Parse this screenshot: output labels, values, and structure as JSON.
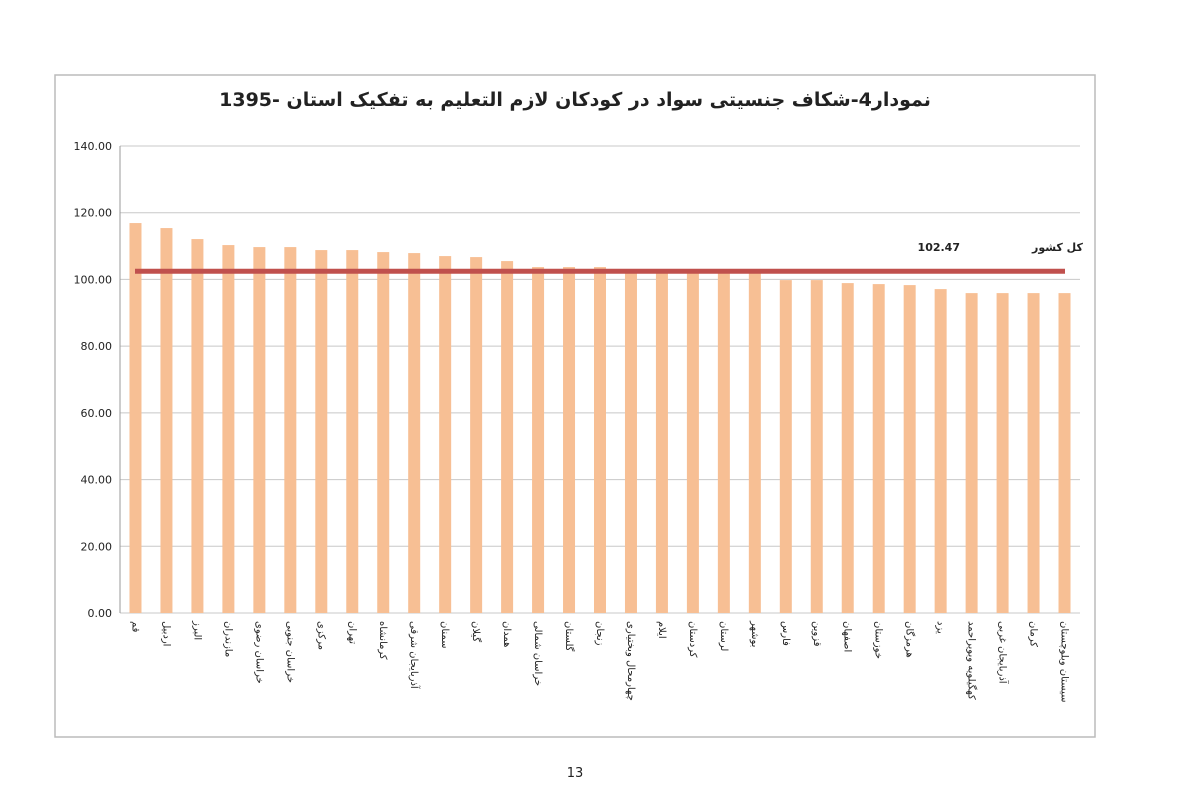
{
  "chart_data": {
    "type": "bar",
    "title": "نمودار4-شکاف جنسیتی سواد در کودکان لازم التعلیم به تفکیک استان -1395",
    "categories": [
      "قم",
      "اردبیل",
      "البرز",
      "مازندران",
      "خراسان رضوی",
      "خراسان جنوبی",
      "مرکزی",
      "تهران",
      "کرمانشاه",
      "آذربایجان شرقی",
      "سمنان",
      "گیلان",
      "همدان",
      "خراسان شمالی",
      "گلستان",
      "زنجان",
      "چهارمحال وبختیاری",
      "ایلام",
      "کردستان",
      "لرستان",
      "بوشهر",
      "فارس",
      "قزوین",
      "اصفهان",
      "خوزستان",
      "هرمزگان",
      "یزد",
      "کهگیلویه وبویراحمد",
      "آذربایجان غربی",
      "کرمان",
      "سیستان وبلوچستان"
    ],
    "values": [
      116.9,
      115.4,
      112.1,
      110.3,
      109.7,
      109.7,
      108.8,
      108.8,
      108.2,
      107.9,
      107.0,
      106.7,
      105.5,
      103.7,
      103.7,
      103.7,
      103.1,
      102.8,
      102.8,
      102.5,
      101.9,
      99.8,
      99.8,
      98.9,
      98.6,
      98.3,
      97.1,
      95.9,
      95.9,
      95.9,
      95.9
    ],
    "color": "#f7bf94",
    "ylim": [
      0,
      140
    ],
    "yticks": [
      {
        "value": 0,
        "label": "0.00"
      },
      {
        "value": 20,
        "label": "20.00"
      },
      {
        "value": 40,
        "label": "40.00"
      },
      {
        "value": 60,
        "label": "60.00"
      },
      {
        "value": 80,
        "label": "80.00"
      },
      {
        "value": 100,
        "label": "100.00"
      },
      {
        "value": 120,
        "label": "120.00"
      },
      {
        "value": 140,
        "label": "140.00"
      }
    ],
    "grid": true,
    "reference_line": {
      "value": 102.47,
      "label": "کل کشور",
      "color": "#c0504d"
    }
  },
  "page_number": "13"
}
